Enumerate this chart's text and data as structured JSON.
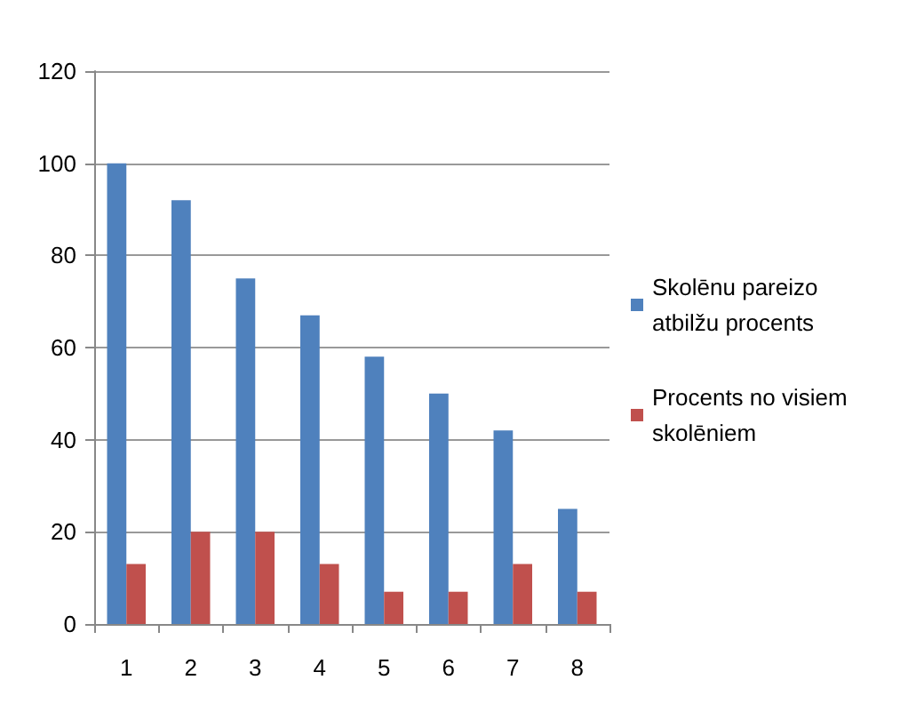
{
  "chart_data": {
    "type": "bar",
    "categories": [
      "1",
      "2",
      "3",
      "4",
      "5",
      "6",
      "7",
      "8"
    ],
    "series": [
      {
        "name": "Skolēnu pareizo atbilžu procents",
        "color": "#4f81bd",
        "values": [
          100,
          92,
          75,
          67,
          58,
          50,
          42,
          25
        ]
      },
      {
        "name": "Procents no visiem skolēniem",
        "color": "#c0504d",
        "values": [
          13,
          20,
          20,
          13,
          7,
          7,
          13,
          7
        ]
      }
    ],
    "ylim": [
      0,
      120
    ],
    "yticks": [
      0,
      20,
      40,
      60,
      80,
      100,
      120
    ],
    "grid": "y",
    "legend": "right"
  }
}
